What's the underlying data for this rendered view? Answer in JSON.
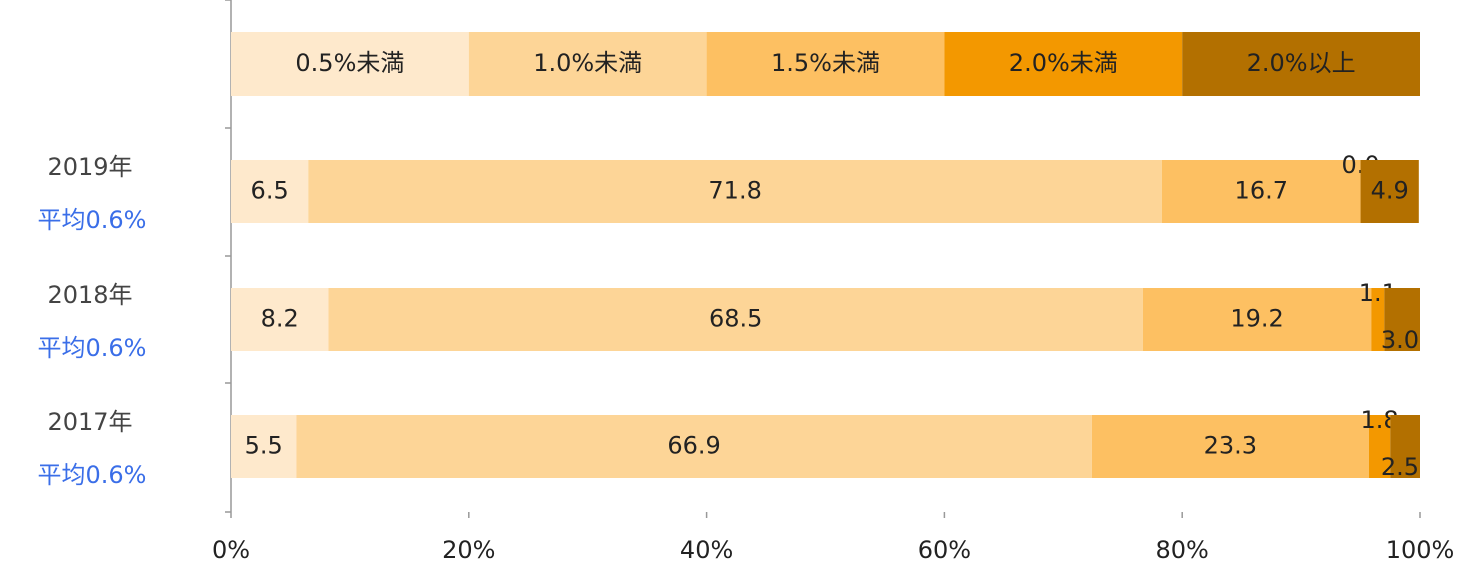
{
  "chart_data": {
    "type": "stacked-bar-horizontal",
    "categories": [
      "2019年",
      "2018年",
      "2017年"
    ],
    "annotations": [
      "平均0.6%",
      "平均0.6%",
      "平均0.6%"
    ],
    "series": [
      {
        "name": "0.5%未満",
        "color": "#fee9cc",
        "values": [
          6.5,
          8.2,
          5.5
        ],
        "value_labels": [
          "6.5",
          "8.2",
          "5.5"
        ]
      },
      {
        "name": "1.0%未満",
        "color": "#fdd597",
        "values": [
          71.8,
          68.5,
          66.9
        ],
        "value_labels": [
          "71.8",
          "68.5",
          "66.9"
        ]
      },
      {
        "name": "1.5%未満",
        "color": "#fdc062",
        "values": [
          16.7,
          19.2,
          23.3
        ],
        "value_labels": [
          "16.7",
          "19.2",
          "23.3"
        ]
      },
      {
        "name": "2.0%未満",
        "color": "#f39800",
        "values": [
          0.0,
          1.1,
          1.8
        ],
        "value_labels": [
          "0.0",
          "1.1",
          "1.8"
        ]
      },
      {
        "name": "2.0%以上",
        "color": "#b37000",
        "values": [
          4.9,
          3.0,
          2.5
        ],
        "value_labels": [
          "4.9",
          "3.0",
          "2.5"
        ]
      }
    ],
    "xlim": [
      0,
      100
    ],
    "xticks": [
      {
        "value": 0,
        "label": "0%"
      },
      {
        "value": 20,
        "label": "20%"
      },
      {
        "value": 40,
        "label": "40%"
      },
      {
        "value": 60,
        "label": "60%"
      },
      {
        "value": 80,
        "label": "80%"
      },
      {
        "value": 100,
        "label": "100%"
      }
    ],
    "legend": "top"
  }
}
